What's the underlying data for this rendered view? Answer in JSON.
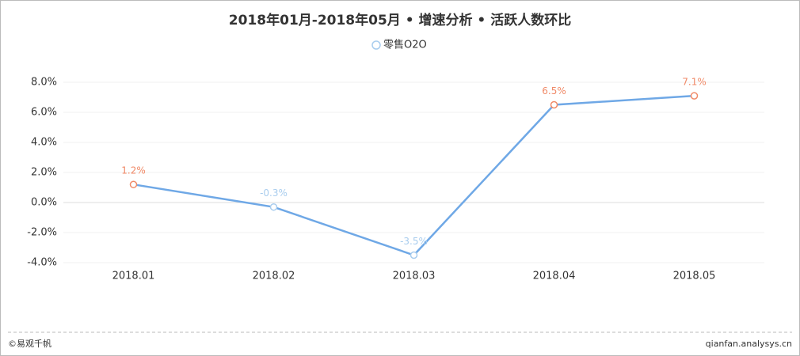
{
  "chart_data": {
    "type": "line",
    "title": "2018年01月-2018年05月 • 增速分析 • 活跃人数环比",
    "categories": [
      "2018.01",
      "2018.02",
      "2018.03",
      "2018.04",
      "2018.05"
    ],
    "series": [
      {
        "name": "零售O2O",
        "color": "#6fa8e6",
        "values": [
          1.2,
          -0.3,
          -3.5,
          6.5,
          7.1
        ],
        "value_labels": [
          "1.2%",
          "-0.3%",
          "-3.5%",
          "6.5%",
          "7.1%"
        ]
      }
    ],
    "positive_color": "#f08a68",
    "negative_color": "#a9cdee",
    "ylim": [
      -4,
      8
    ],
    "yticks": [
      {
        "value": -4,
        "label": "-4.0%"
      },
      {
        "value": -2,
        "label": "-2.0%"
      },
      {
        "value": 0,
        "label": "0.0%"
      },
      {
        "value": 2,
        "label": "2.0%"
      },
      {
        "value": 4,
        "label": "4.0%"
      },
      {
        "value": 6,
        "label": "6.0%"
      },
      {
        "value": 8,
        "label": "8.0%"
      }
    ],
    "grid": true
  },
  "footer": {
    "left": "©易观千帆",
    "right": "qianfan.analysys.cn"
  }
}
